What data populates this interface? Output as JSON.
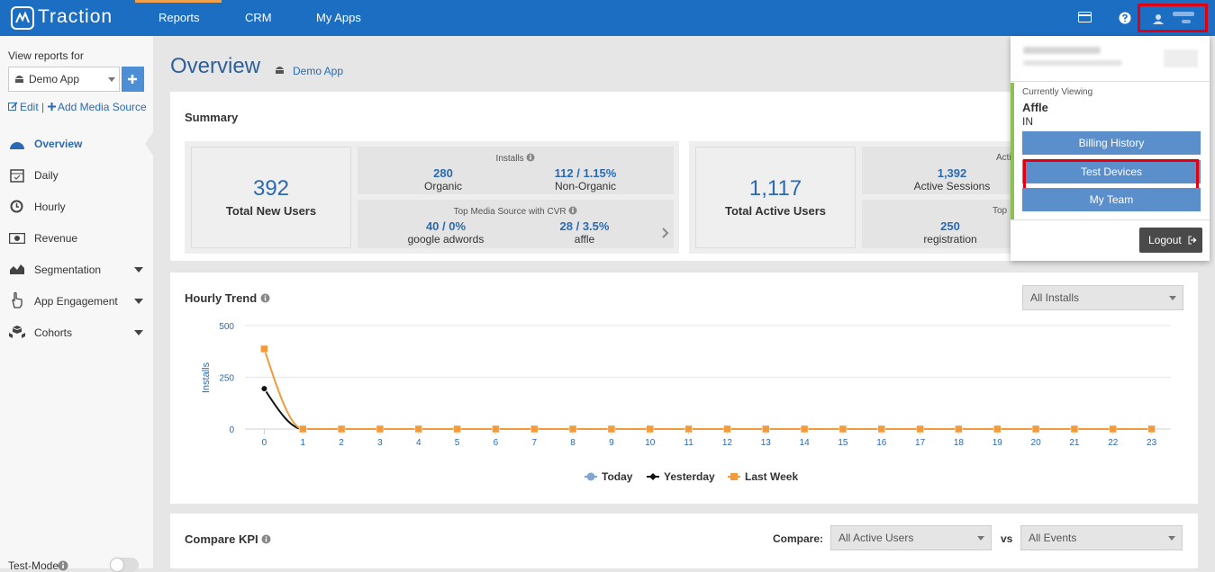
{
  "nav": {
    "logo": "Traction",
    "items": [
      "Reports",
      "CRM",
      "My Apps"
    ]
  },
  "sidebar": {
    "view_reports_for": "View reports for",
    "app_select": "Demo App",
    "edit": "Edit",
    "separator": "|",
    "add_media_source": "Add Media Source",
    "menu": [
      "Overview",
      "Daily",
      "Hourly",
      "Revenue",
      "Segmentation",
      "App Engagement",
      "Cohorts"
    ],
    "test_mode": "Test-Mode"
  },
  "page": {
    "title": "Overview",
    "app": "Demo App"
  },
  "summary": {
    "title": "Summary",
    "new_users": {
      "value": "392",
      "label": "Total New Users"
    },
    "installs": {
      "title": "Installs",
      "organic_value": "280",
      "organic_label": "Organic",
      "non_organic_value": "112 / 1.15%",
      "non_organic_label": "Non-Organic"
    },
    "top_media": {
      "title": "Top Media Source with CVR",
      "first_value": "40 / 0%",
      "first_label": "google adwords",
      "second_value": "28 / 3.5%",
      "second_label": "affle"
    },
    "active_users": {
      "value": "1,117",
      "label": "Total Active Users"
    },
    "activity": {
      "title": "Acti",
      "value": "1,392",
      "label": "Active Sessions"
    },
    "top_events": {
      "title": "Top",
      "value": "250",
      "label": "registration"
    }
  },
  "hourly_trend": {
    "title": "Hourly Trend",
    "select": "All Installs",
    "chart_data": {
      "type": "line",
      "ylabel": "Installs",
      "x": [
        0,
        1,
        2,
        3,
        4,
        5,
        6,
        7,
        8,
        9,
        10,
        11,
        12,
        13,
        14,
        15,
        16,
        17,
        18,
        19,
        20,
        21,
        22,
        23
      ],
      "xlim": [
        -0.5,
        23.5
      ],
      "xticks": [
        0,
        1,
        2,
        3,
        4,
        5,
        6,
        7,
        8,
        9,
        10,
        11,
        12,
        13,
        14,
        15,
        16,
        17,
        18,
        19,
        20,
        21,
        22,
        23
      ],
      "ylim": [
        0,
        500
      ],
      "yticks": [
        0,
        250,
        500
      ],
      "grid": true,
      "series": [
        {
          "name": "Today",
          "color": "#7fa7d1",
          "values": [
            null,
            null,
            null,
            null,
            null,
            null,
            null,
            null,
            null,
            null,
            null,
            null,
            null,
            null,
            null,
            null,
            null,
            null,
            null,
            null,
            null,
            null,
            null,
            null
          ]
        },
        {
          "name": "Yesterday",
          "color": "#111111",
          "values": [
            195,
            0,
            null,
            null,
            null,
            null,
            null,
            null,
            null,
            null,
            null,
            null,
            null,
            null,
            null,
            null,
            null,
            null,
            null,
            null,
            null,
            null,
            null,
            null
          ]
        },
        {
          "name": "Last Week",
          "color": "#f39a3a",
          "values": [
            387,
            0,
            0,
            0,
            0,
            0,
            0,
            0,
            0,
            0,
            0,
            0,
            0,
            0,
            0,
            0,
            0,
            0,
            0,
            0,
            0,
            0,
            0,
            0
          ]
        }
      ]
    }
  },
  "compare_kpi": {
    "title": "Compare KPI",
    "compare_label": "Compare:",
    "first_select": "All Active Users",
    "vs": "vs",
    "second_select": "All Events"
  },
  "account_menu": {
    "currently_viewing": "Currently Viewing",
    "account": "Affle",
    "region": "IN",
    "buttons": [
      "Billing History",
      "Test Devices",
      "My Team"
    ],
    "logout": "Logout"
  }
}
